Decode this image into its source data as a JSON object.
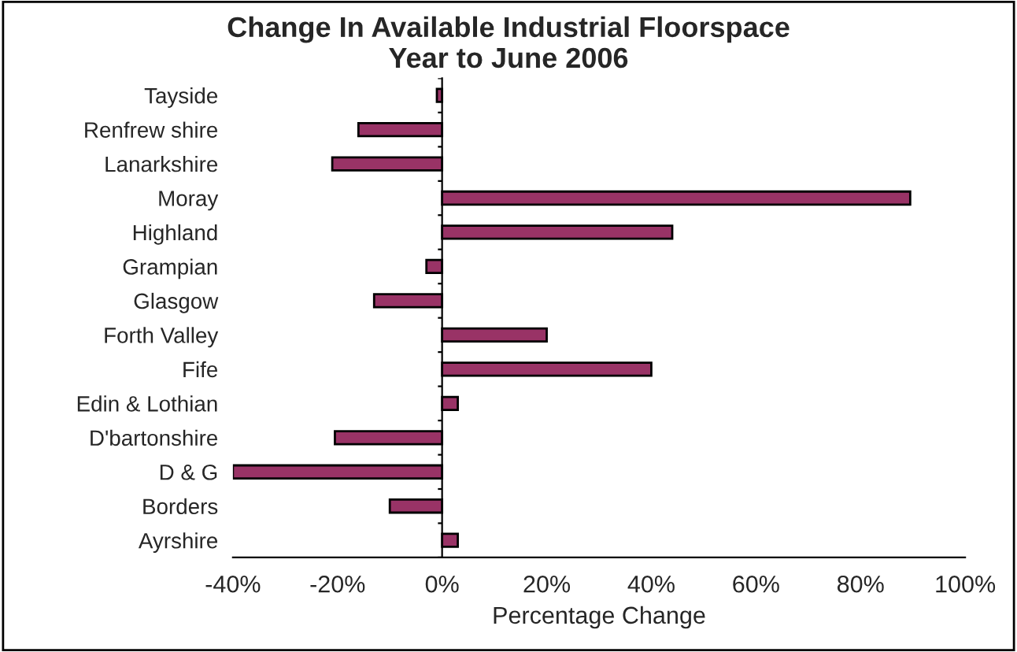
{
  "chart_data": {
    "type": "bar",
    "orientation": "horizontal",
    "title": "Change In Available Industrial Floorspace\nYear to June 2006",
    "xlabel": "Percentage Change",
    "categories": [
      "Tayside",
      "Renfrew shire",
      "Lanarkshire",
      "Moray",
      "Highland",
      "Grampian",
      "Glasgow",
      "Forth Valley",
      "Fife",
      "Edin & Lothian",
      "D'bartonshire",
      "D & G",
      "Borders",
      "Ayrshire"
    ],
    "values": [
      -1,
      -16,
      -21,
      89.5,
      44,
      -3,
      -13,
      20,
      40,
      3,
      -20.5,
      -40,
      -10,
      3
    ],
    "color": "#993366",
    "xlim": [
      -40,
      100
    ],
    "xticks": [
      {
        "value": -40,
        "label": "-40%"
      },
      {
        "value": -20,
        "label": "-20%"
      },
      {
        "value": 0,
        "label": "0%"
      },
      {
        "value": 20,
        "label": "20%"
      },
      {
        "value": 40,
        "label": "40%"
      },
      {
        "value": 60,
        "label": "60%"
      },
      {
        "value": 80,
        "label": "80%"
      },
      {
        "value": 100,
        "label": "100%"
      }
    ],
    "legend": false
  }
}
